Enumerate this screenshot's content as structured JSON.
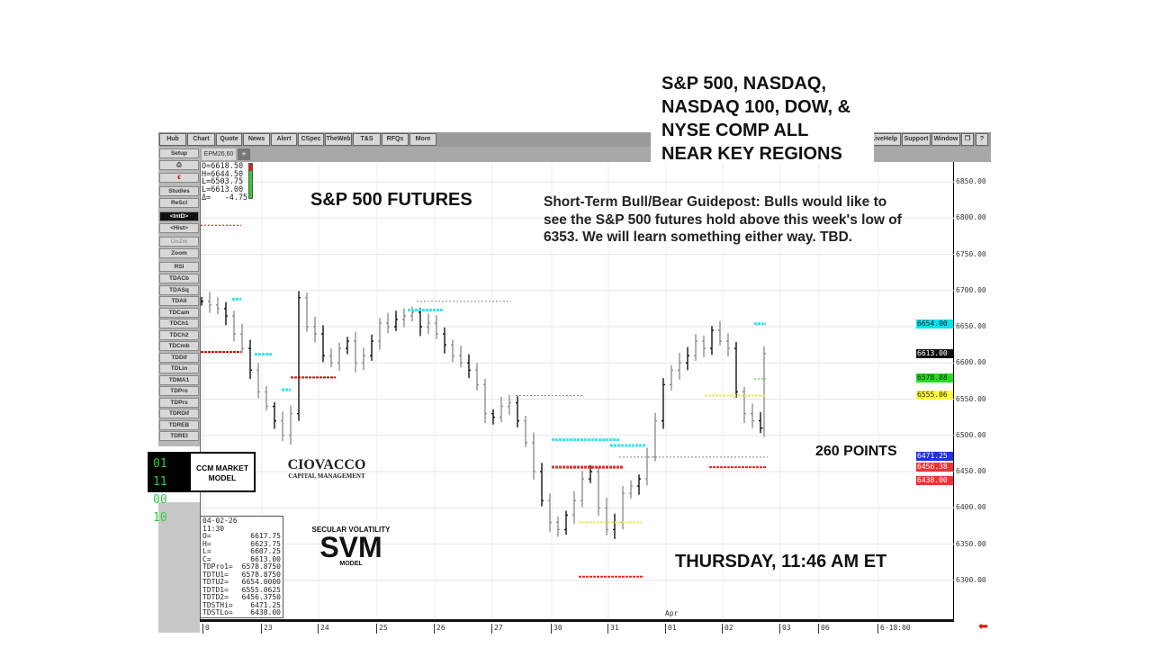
{
  "toolbar": {
    "left": [
      "Hub",
      "Chart",
      "Quote",
      "News",
      "Alert",
      "CSpec",
      "TheWeb",
      "T&S",
      "RFQs",
      "More"
    ],
    "right": [
      "LiveHelp",
      "Support",
      "Window",
      "❐",
      "?"
    ]
  },
  "tab": {
    "symbol": "EPM26,60",
    "add": "+"
  },
  "left_buttons": [
    "Setup",
    "⎙",
    "€",
    "Studies",
    "ReScl",
    "<IntD>",
    "<Hist>",
    "UnZm",
    "Zoom",
    "RSI",
    "TDACb",
    "TDASq",
    "TDAli",
    "TDCam",
    "TDCh1",
    "TDCh2",
    "TDCmb",
    "TDDif",
    "TDLin",
    "TDMA1",
    "TDPro",
    "TDPrs",
    "TDRDif",
    "TDREB",
    "TDREI"
  ],
  "ohlc_header": [
    "O=6618.50",
    "H=6644.50",
    "L=6503.75",
    "L=6613.00",
    "Δ=   -4.75"
  ],
  "databox": {
    "date": "04-02-26",
    "time": "11:30",
    "rows": [
      [
        "O=",
        "6617.75"
      ],
      [
        "H=",
        "6623.75"
      ],
      [
        "L=",
        "6607.25"
      ],
      [
        "C=",
        "6613.00"
      ],
      [
        "TDPro1=",
        "6578.8750"
      ],
      [
        "TDTU1=",
        "6578.8750"
      ],
      [
        "TDTU2=",
        "6654.0000"
      ],
      [
        "TDTD1=",
        "6555.0625"
      ],
      [
        "TDTD2=",
        "6456.3750"
      ],
      [
        "TDSTHi=",
        "6471.25"
      ],
      [
        "TDSTLo=",
        "6438.00"
      ]
    ]
  },
  "annotations": {
    "title": "S&P 500 FUTURES",
    "guidepost": "Short-Term Bull/Bear Guidepost:  Bulls would like to see the S&P 500 futures hold above this week's low of 6353. We will learn something either way. TBD.",
    "headline": [
      "S&P 500, NASDAQ,",
      "NASDAQ 100, DOW, &",
      "NYSE COMP ALL",
      "NEAR KEY REGIONS"
    ],
    "points": "260 POINTS",
    "timestamp": "THURSDAY, 11:46 AM ET"
  },
  "logos": {
    "ccm_digits": [
      "01 11",
      "00 10"
    ],
    "ccm_text": [
      "CCM MARKET",
      "MODEL"
    ],
    "ciovacco": "CIOVACCO",
    "ciovacco_sub": "CAPITAL MANAGEMENT",
    "svm_top": "SECULAR VOLATILITY",
    "svm": "SVM",
    "svm_bottom": "MODEL"
  },
  "chart_data": {
    "type": "bar",
    "symbol": "EPM26,60",
    "ylim": [
      6275,
      6875
    ],
    "y_ticks": [
      6300,
      6350,
      6400,
      6450,
      6500,
      6550,
      6600,
      6650,
      6700,
      6750,
      6800,
      6850
    ],
    "x_labels": [
      "0",
      "23",
      "24",
      "25",
      "26",
      "27",
      "30",
      "31",
      "01",
      "02",
      "03",
      "06",
      "6-18:00"
    ],
    "month_label": "Apr",
    "closes": [
      6685,
      6680,
      6675,
      6665,
      6640,
      6620,
      6590,
      6560,
      6540,
      6520,
      6500,
      6530,
      6690,
      6650,
      6640,
      6610,
      6600,
      6620,
      6630,
      6600,
      6610,
      6630,
      6655,
      6650,
      6660,
      6665,
      6670,
      6650,
      6655,
      6640,
      6625,
      6610,
      6600,
      6590,
      6570,
      6530,
      6525,
      6540,
      6545,
      6520,
      6490,
      6450,
      6410,
      6380,
      6370,
      6390,
      6410,
      6440,
      6450,
      6400,
      6370,
      6380,
      6420,
      6430,
      6440,
      6470,
      6520,
      6570,
      6590,
      6600,
      6610,
      6630,
      6620,
      6645,
      6630,
      6620,
      6560,
      6530,
      6520,
      6510,
      6613
    ],
    "price_tags": [
      {
        "value": "6654.00",
        "color": "#00e5ee"
      },
      {
        "value": "6613.00",
        "color": "#111111"
      },
      {
        "value": "6578.88",
        "color": "#22dd22"
      },
      {
        "value": "6555.06",
        "color": "#ffff33"
      },
      {
        "value": "6471.25",
        "color": "#2233dd"
      },
      {
        "value": "6456.38",
        "color": "#ee3333"
      },
      {
        "value": "6438.00",
        "color": "#ee3333"
      }
    ]
  }
}
